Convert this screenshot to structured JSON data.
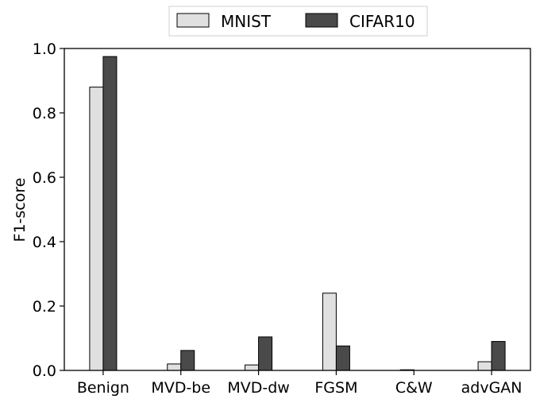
{
  "chart_data": {
    "type": "bar",
    "categories": [
      "Benign",
      "MVD-be",
      "MVD-dw",
      "FGSM",
      "C&W",
      "advGAN"
    ],
    "series": [
      {
        "name": "MNIST",
        "values": [
          0.88,
          0.02,
          0.017,
          0.24,
          0.002,
          0.027
        ],
        "color": "#e0e0e0"
      },
      {
        "name": "CIFAR10",
        "values": [
          0.975,
          0.062,
          0.104,
          0.076,
          0.0,
          0.09
        ],
        "color": "#4a4a4a"
      }
    ],
    "title": "",
    "xlabel": "",
    "ylabel": "F1-score",
    "ylim": [
      0,
      1.0
    ],
    "yticks": [
      "0.0",
      "0.2",
      "0.4",
      "0.6",
      "0.8",
      "1.0"
    ],
    "grid": false,
    "legend_position": "top-center"
  }
}
